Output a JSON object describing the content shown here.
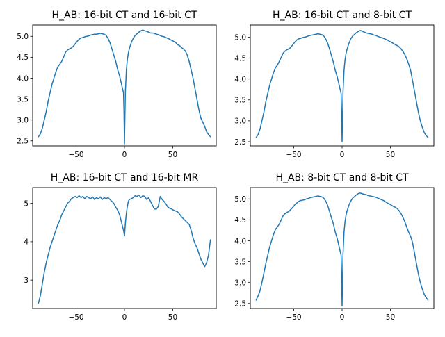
{
  "chart_data": [
    {
      "type": "line",
      "title": "H_AB: 16-bit CT and 16-bit CT",
      "xlabel": "",
      "ylabel": "",
      "xlim": [
        -95,
        95
      ],
      "ylim": [
        2.38,
        5.27
      ],
      "xticks": [
        -50,
        0,
        50
      ],
      "yticks": [
        2.5,
        3.0,
        3.5,
        4.0,
        4.5,
        5.0
      ],
      "xtick_labels": [
        "−50",
        "0",
        "50"
      ],
      "ytick_labels": [
        "2.5",
        "3.0",
        "3.5",
        "4.0",
        "4.5",
        "5.0"
      ],
      "grid": false,
      "series": [
        {
          "color": "#1f77b4",
          "x": [
            -89,
            -87,
            -85,
            -83,
            -81,
            -79,
            -77,
            -75,
            -73,
            -71,
            -69,
            -67,
            -65,
            -63,
            -61,
            -59,
            -57,
            -55,
            -53,
            -51,
            -49,
            -47,
            -45,
            -43,
            -41,
            -39,
            -37,
            -35,
            -33,
            -31,
            -29,
            -27,
            -25,
            -23,
            -21,
            -19,
            -17,
            -15,
            -13,
            -11,
            -9,
            -7,
            -5,
            -4,
            -3,
            -2,
            -1,
            -0.5,
            0,
            0.5,
            1,
            2,
            3,
            4,
            5,
            7,
            9,
            11,
            13,
            15,
            17,
            19,
            21,
            23,
            25,
            27,
            29,
            31,
            33,
            35,
            37,
            39,
            41,
            43,
            45,
            47,
            49,
            51,
            53,
            55,
            57,
            59,
            61,
            63,
            65,
            67,
            69,
            71,
            73,
            75,
            77,
            79,
            81,
            83,
            85,
            87,
            89
          ],
          "y": [
            2.6,
            2.67,
            2.8,
            3.0,
            3.2,
            3.45,
            3.65,
            3.85,
            4.0,
            4.15,
            4.27,
            4.33,
            4.4,
            4.5,
            4.62,
            4.67,
            4.7,
            4.72,
            4.76,
            4.82,
            4.88,
            4.93,
            4.96,
            4.97,
            4.99,
            5.0,
            5.01,
            5.03,
            5.04,
            5.05,
            5.05,
            5.06,
            5.07,
            5.06,
            5.05,
            5.02,
            4.95,
            4.85,
            4.7,
            4.55,
            4.4,
            4.2,
            4.05,
            3.95,
            3.85,
            3.75,
            3.65,
            3.2,
            2.43,
            3.1,
            3.7,
            4.2,
            4.45,
            4.6,
            4.7,
            4.85,
            4.95,
            5.02,
            5.06,
            5.1,
            5.13,
            5.15,
            5.13,
            5.12,
            5.1,
            5.08,
            5.08,
            5.07,
            5.05,
            5.04,
            5.02,
            5.0,
            4.99,
            4.97,
            4.95,
            4.93,
            4.9,
            4.88,
            4.85,
            4.8,
            4.78,
            4.73,
            4.7,
            4.65,
            4.55,
            4.4,
            4.2,
            4.0,
            3.75,
            3.5,
            3.25,
            3.05,
            2.95,
            2.85,
            2.72,
            2.65,
            2.6
          ]
        }
      ]
    },
    {
      "type": "line",
      "title": "H_AB:  16-bit CT and  8-bit CT",
      "xlabel": "",
      "ylabel": "",
      "xlim": [
        -95,
        95
      ],
      "ylim": [
        2.4,
        5.29
      ],
      "xticks": [
        -50,
        0,
        50
      ],
      "yticks": [
        2.5,
        3.0,
        3.5,
        4.0,
        4.5,
        5.0
      ],
      "xtick_labels": [
        "−50",
        "0",
        "50"
      ],
      "ytick_labels": [
        "2.5",
        "3.0",
        "3.5",
        "4.0",
        "4.5",
        "5.0"
      ],
      "grid": false,
      "series": [
        {
          "color": "#1f77b4",
          "x": [
            -89,
            -87,
            -85,
            -83,
            -81,
            -79,
            -77,
            -75,
            -73,
            -71,
            -69,
            -67,
            -65,
            -63,
            -61,
            -59,
            -57,
            -55,
            -53,
            -51,
            -49,
            -47,
            -45,
            -43,
            -41,
            -39,
            -37,
            -35,
            -33,
            -31,
            -29,
            -27,
            -25,
            -23,
            -21,
            -19,
            -17,
            -15,
            -13,
            -11,
            -9,
            -7,
            -5,
            -4,
            -3,
            -2,
            -1,
            -0.5,
            0,
            0.5,
            1,
            2,
            3,
            4,
            5,
            7,
            9,
            11,
            13,
            15,
            17,
            19,
            21,
            23,
            25,
            27,
            29,
            31,
            33,
            35,
            37,
            39,
            41,
            43,
            45,
            47,
            49,
            51,
            53,
            55,
            57,
            59,
            61,
            63,
            65,
            67,
            69,
            71,
            73,
            75,
            77,
            79,
            81,
            83,
            85,
            87,
            89
          ],
          "y": [
            2.6,
            2.67,
            2.8,
            3.0,
            3.2,
            3.45,
            3.65,
            3.85,
            4.0,
            4.15,
            4.27,
            4.33,
            4.42,
            4.52,
            4.62,
            4.67,
            4.7,
            4.72,
            4.76,
            4.82,
            4.88,
            4.93,
            4.96,
            4.97,
            4.99,
            5.0,
            5.01,
            5.03,
            5.04,
            5.05,
            5.06,
            5.07,
            5.08,
            5.07,
            5.06,
            5.03,
            4.96,
            4.86,
            4.72,
            4.56,
            4.4,
            4.2,
            4.05,
            3.95,
            3.85,
            3.75,
            3.65,
            3.2,
            2.5,
            3.1,
            3.7,
            4.2,
            4.45,
            4.6,
            4.7,
            4.85,
            4.96,
            5.03,
            5.07,
            5.11,
            5.14,
            5.16,
            5.14,
            5.12,
            5.1,
            5.09,
            5.08,
            5.07,
            5.05,
            5.04,
            5.02,
            5.0,
            4.99,
            4.97,
            4.95,
            4.93,
            4.9,
            4.88,
            4.85,
            4.82,
            4.8,
            4.77,
            4.72,
            4.66,
            4.58,
            4.48,
            4.35,
            4.2,
            3.95,
            3.7,
            3.45,
            3.2,
            3.0,
            2.85,
            2.72,
            2.65,
            2.6
          ]
        }
      ]
    },
    {
      "type": "line",
      "title": "H_AB:  16-bit CT and 16-bit MR",
      "xlabel": "",
      "ylabel": "",
      "xlim": [
        -95,
        95
      ],
      "ylim": [
        2.26,
        5.41
      ],
      "xticks": [
        -50,
        0,
        50
      ],
      "yticks": [
        3,
        4,
        5
      ],
      "xtick_labels": [
        "−50",
        "0",
        "50"
      ],
      "ytick_labels": [
        "3",
        "4",
        "5"
      ],
      "grid": false,
      "series": [
        {
          "color": "#1f77b4",
          "x": [
            -89,
            -87,
            -85,
            -83,
            -81,
            -79,
            -77,
            -75,
            -73,
            -71,
            -69,
            -67,
            -65,
            -63,
            -61,
            -59,
            -57,
            -55,
            -53,
            -51,
            -49,
            -47,
            -45,
            -43,
            -41,
            -39,
            -37,
            -35,
            -33,
            -31,
            -29,
            -27,
            -25,
            -23,
            -21,
            -19,
            -17,
            -15,
            -13,
            -11,
            -9,
            -7,
            -5,
            -4,
            -3,
            -2,
            -1,
            0,
            1,
            2,
            3,
            4,
            5,
            7,
            9,
            11,
            13,
            15,
            17,
            19,
            21,
            23,
            25,
            27,
            29,
            31,
            33,
            35,
            37,
            39,
            41,
            43,
            45,
            47,
            49,
            51,
            53,
            55,
            57,
            59,
            61,
            63,
            65,
            67,
            69,
            71,
            73,
            75,
            77,
            79,
            81,
            83,
            85,
            87,
            89
          ],
          "y": [
            2.4,
            2.6,
            2.9,
            3.2,
            3.45,
            3.65,
            3.85,
            4.0,
            4.15,
            4.3,
            4.45,
            4.55,
            4.7,
            4.8,
            4.9,
            5.0,
            5.05,
            5.12,
            5.15,
            5.18,
            5.15,
            5.2,
            5.15,
            5.18,
            5.12,
            5.18,
            5.15,
            5.12,
            5.17,
            5.1,
            5.15,
            5.12,
            5.17,
            5.1,
            5.15,
            5.12,
            5.15,
            5.1,
            5.05,
            5.0,
            4.9,
            4.82,
            4.7,
            4.6,
            4.5,
            4.4,
            4.3,
            4.15,
            4.5,
            4.75,
            4.92,
            5.05,
            5.1,
            5.12,
            5.15,
            5.2,
            5.18,
            5.22,
            5.15,
            5.2,
            5.18,
            5.1,
            5.15,
            5.05,
            4.95,
            4.85,
            4.85,
            4.92,
            5.18,
            5.1,
            5.05,
            4.98,
            4.9,
            4.87,
            4.85,
            4.82,
            4.8,
            4.78,
            4.72,
            4.65,
            4.6,
            4.55,
            4.5,
            4.45,
            4.3,
            4.1,
            3.95,
            3.85,
            3.7,
            3.55,
            3.45,
            3.35,
            3.45,
            3.65,
            4.05
          ]
        }
      ]
    },
    {
      "type": "line",
      "title": "H_AB:  8-bit CT and  8-bit CT",
      "xlabel": "",
      "ylabel": "",
      "xlim": [
        -95,
        95
      ],
      "ylim": [
        2.38,
        5.27
      ],
      "xticks": [
        -50,
        0,
        50
      ],
      "yticks": [
        2.5,
        3.0,
        3.5,
        4.0,
        4.5,
        5.0
      ],
      "xtick_labels": [
        "−50",
        "0",
        "50"
      ],
      "ytick_labels": [
        "2.5",
        "3.0",
        "3.5",
        "4.0",
        "4.5",
        "5.0"
      ],
      "grid": false,
      "series": [
        {
          "color": "#1f77b4",
          "x": [
            -89,
            -87,
            -85,
            -83,
            -81,
            -79,
            -77,
            -75,
            -73,
            -71,
            -69,
            -67,
            -65,
            -63,
            -61,
            -59,
            -57,
            -55,
            -53,
            -51,
            -49,
            -47,
            -45,
            -43,
            -41,
            -39,
            -37,
            -35,
            -33,
            -31,
            -29,
            -27,
            -25,
            -23,
            -21,
            -19,
            -17,
            -15,
            -13,
            -11,
            -9,
            -7,
            -5,
            -4,
            -3,
            -2,
            -1,
            -0.5,
            0,
            0.5,
            1,
            2,
            3,
            4,
            5,
            7,
            9,
            11,
            13,
            15,
            17,
            19,
            21,
            23,
            25,
            27,
            29,
            31,
            33,
            35,
            37,
            39,
            41,
            43,
            45,
            47,
            49,
            51,
            53,
            55,
            57,
            59,
            61,
            63,
            65,
            67,
            69,
            71,
            73,
            75,
            77,
            79,
            81,
            83,
            85,
            87,
            89
          ],
          "y": [
            2.58,
            2.68,
            2.8,
            3.0,
            3.22,
            3.45,
            3.65,
            3.85,
            4.0,
            4.15,
            4.27,
            4.33,
            4.4,
            4.5,
            4.6,
            4.65,
            4.68,
            4.7,
            4.75,
            4.8,
            4.86,
            4.9,
            4.94,
            4.96,
            4.97,
            4.98,
            5.0,
            5.01,
            5.03,
            5.04,
            5.05,
            5.06,
            5.07,
            5.06,
            5.05,
            5.02,
            4.95,
            4.85,
            4.7,
            4.55,
            4.4,
            4.2,
            4.05,
            3.95,
            3.85,
            3.75,
            3.65,
            3.2,
            2.44,
            3.1,
            3.7,
            4.2,
            4.45,
            4.6,
            4.7,
            4.85,
            4.95,
            5.02,
            5.06,
            5.1,
            5.13,
            5.14,
            5.12,
            5.11,
            5.1,
            5.08,
            5.07,
            5.06,
            5.05,
            5.04,
            5.02,
            5.0,
            4.98,
            4.96,
            4.93,
            4.9,
            4.88,
            4.85,
            4.82,
            4.8,
            4.77,
            4.72,
            4.65,
            4.56,
            4.45,
            4.32,
            4.2,
            4.1,
            3.95,
            3.7,
            3.45,
            3.2,
            3.0,
            2.85,
            2.72,
            2.64,
            2.58
          ]
        }
      ]
    }
  ]
}
